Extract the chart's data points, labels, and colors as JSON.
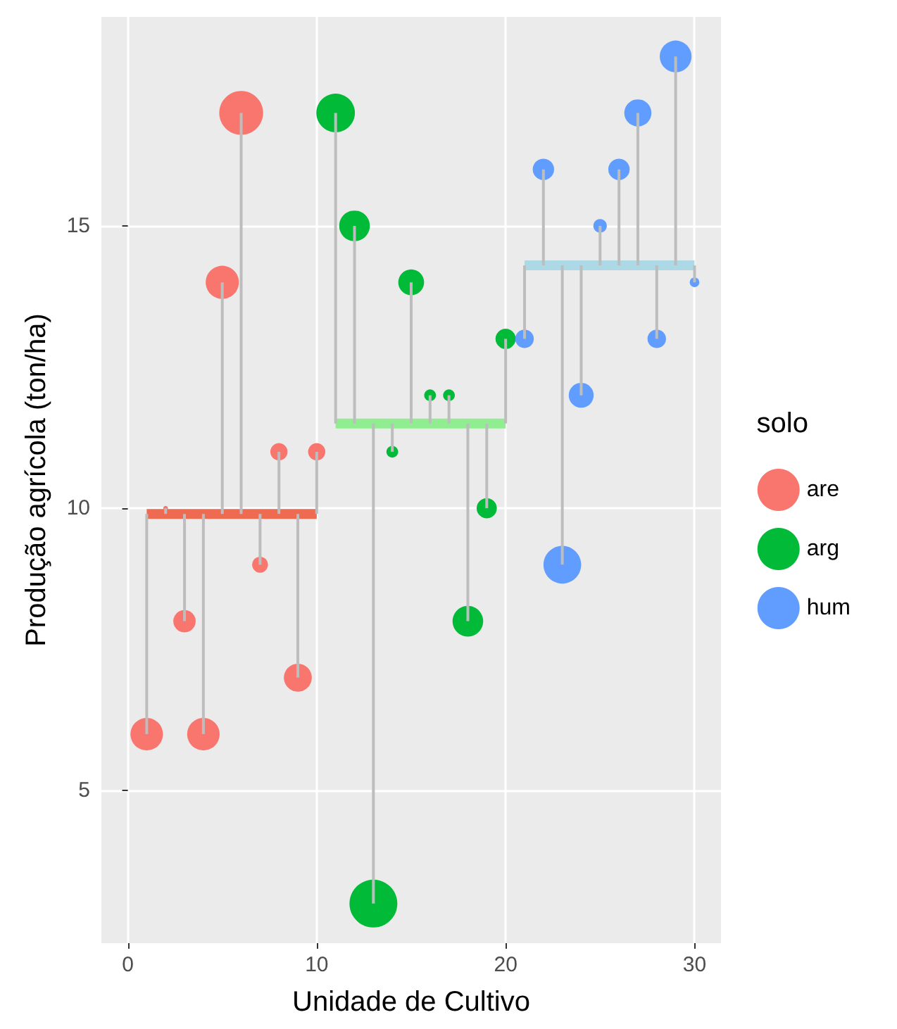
{
  "chart_data": {
    "type": "bubble",
    "xlabel": "Unidade de Cultivo",
    "ylabel": "Produção agrícola (ton/ha)",
    "legend_title": "solo",
    "xlim": [
      -1.4,
      31.4
    ],
    "xticks": [
      0,
      10,
      20,
      30
    ],
    "ylim": [
      2.3,
      18.7
    ],
    "yticks": [
      5,
      10,
      15
    ],
    "grid": true,
    "legend": "right",
    "series": [
      {
        "name": "are",
        "color": "#f8766d",
        "x": [
          1,
          2,
          3,
          4,
          5,
          6,
          7,
          8,
          9,
          10
        ],
        "values": [
          6,
          10,
          8,
          6,
          14,
          17,
          9,
          11,
          7,
          11
        ],
        "sizes": [
          0.46,
          0.01,
          0.22,
          0.46,
          0.48,
          0.84,
          0.11,
          0.13,
          0.34,
          0.13
        ],
        "errors": [
          [
            6,
            9.9
          ],
          [
            9.9,
            10
          ],
          [
            8,
            9.9
          ],
          [
            6,
            9.9
          ],
          [
            9.9,
            14
          ],
          [
            9.9,
            17
          ],
          [
            9,
            9.9
          ],
          [
            9.9,
            11
          ],
          [
            7,
            9.9
          ],
          [
            9.9,
            11
          ]
        ]
      },
      {
        "name": "arg",
        "color": "#00ba38",
        "x": [
          11,
          12,
          13,
          14,
          15,
          16,
          17,
          18,
          19,
          20
        ],
        "values": [
          17,
          15,
          3,
          11,
          14,
          12,
          12,
          8,
          10,
          13
        ],
        "sizes": [
          0.65,
          0.41,
          1,
          0.06,
          0.29,
          0.06,
          0.06,
          0.41,
          0.18,
          0.18
        ],
        "errors": [
          [
            11.5,
            17
          ],
          [
            11.5,
            15
          ],
          [
            3,
            11.5
          ],
          [
            11,
            11.5
          ],
          [
            11.5,
            14
          ],
          [
            11.5,
            12
          ],
          [
            11.5,
            12
          ],
          [
            8,
            11.5
          ],
          [
            10,
            11.5
          ],
          [
            11.5,
            13
          ]
        ]
      },
      {
        "name": "hum",
        "color": "#619cff",
        "x": [
          21,
          22,
          23,
          24,
          25,
          26,
          27,
          28,
          29,
          30
        ],
        "values": [
          13,
          16,
          9,
          12,
          15,
          16,
          17,
          13,
          18,
          14
        ],
        "sizes": [
          0.15,
          0.2,
          0.62,
          0.27,
          0.08,
          0.2,
          0.32,
          0.15,
          0.44,
          0.04
        ],
        "errors": [
          [
            13,
            14.3
          ],
          [
            14.3,
            16
          ],
          [
            9,
            14.3
          ],
          [
            12,
            14.3
          ],
          [
            14.3,
            15
          ],
          [
            14.3,
            16
          ],
          [
            14.3,
            17
          ],
          [
            13,
            14.3
          ],
          [
            14.3,
            18
          ],
          [
            14,
            14.3
          ]
        ]
      },
      {
        "type": "line",
        "color": "#ee6a50",
        "x": [
          1,
          10
        ],
        "values": [
          9.9,
          9.9
        ]
      },
      {
        "type": "line",
        "color": "#90ee90",
        "x": [
          11,
          20
        ],
        "values": [
          11.5,
          11.5
        ]
      },
      {
        "type": "line",
        "color": "#add8e6",
        "x": [
          21,
          30
        ],
        "values": [
          14.3,
          14.3
        ]
      }
    ]
  }
}
